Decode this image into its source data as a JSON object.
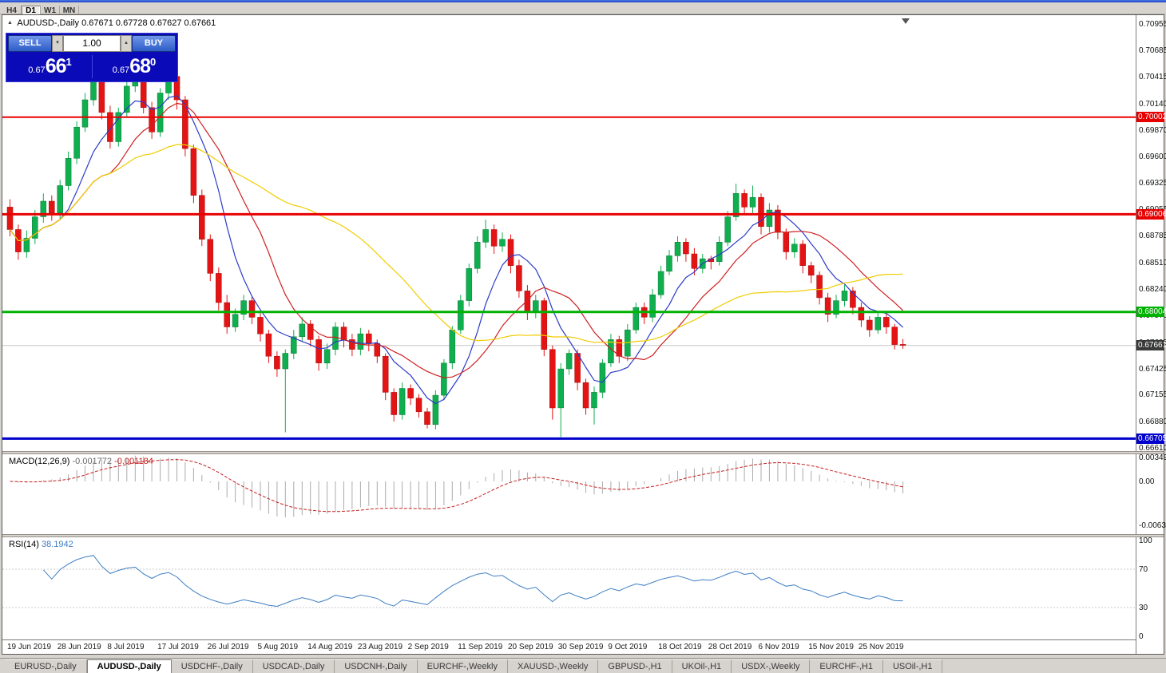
{
  "window": {
    "toolbar": {
      "timeframes": [
        "H4",
        "D1",
        "W1",
        "MN"
      ],
      "active": "D1"
    }
  },
  "header": {
    "symbol_title": "AUDUSD-,Daily",
    "ohlc": "0.67671 0.67728 0.67627 0.67661"
  },
  "trade_panel": {
    "sell_label": "SELL",
    "buy_label": "BUY",
    "volume": "1.00",
    "sell_price_prefix": "0.67",
    "sell_price_big": "66",
    "sell_price_sup": "1",
    "buy_price_prefix": "0.67",
    "buy_price_big": "68",
    "buy_price_sup": "0"
  },
  "tabs": {
    "items": [
      {
        "label": "EURUSD-,Daily",
        "active": false
      },
      {
        "label": "AUDUSD-,Daily",
        "active": true
      },
      {
        "label": "USDCHF-,Daily",
        "active": false
      },
      {
        "label": "USDCAD-,Daily",
        "active": false
      },
      {
        "label": "USDCNH-,Daily",
        "active": false
      },
      {
        "label": "EURCHF-,Weekly",
        "active": false
      },
      {
        "label": "XAUUSD-,Weekly",
        "active": false
      },
      {
        "label": "GBPUSD-,H1",
        "active": false
      },
      {
        "label": "UKOil-,H1",
        "active": false
      },
      {
        "label": "USDX-,Weekly",
        "active": false
      },
      {
        "label": "EURCHF-,H1",
        "active": false
      },
      {
        "label": "USOil-,H1",
        "active": false
      }
    ]
  },
  "chart_data": {
    "type": "candlestick",
    "symbol": "AUDUSD-",
    "timeframe": "Daily",
    "y_axis_range": {
      "top": 0.7095,
      "bottom": 0.6661
    },
    "bull_color": "#0fae4e",
    "bull_border": "#0a7a37",
    "bear_color": "#e41414",
    "bear_border": "#a30d0d",
    "y_ticks": [
      "0.70955",
      "0.70685",
      "0.70415",
      "0.70140",
      "0.69870",
      "0.69600",
      "0.69325",
      "0.69055",
      "0.68785",
      "0.68510",
      "0.68240",
      "0.67970",
      "0.67695",
      "0.67425",
      "0.67155",
      "0.66880",
      "0.66610"
    ],
    "badges": [
      {
        "t": "0.70002",
        "bg": "#e80000"
      },
      {
        "t": "0.69006",
        "bg": "#e80000"
      },
      {
        "t": "0.68004",
        "bg": "#00b200"
      },
      {
        "t": "0.67661",
        "bg": "#3a3a3a"
      },
      {
        "t": "0.66705",
        "bg": "#0000cd"
      }
    ],
    "hlines": [
      {
        "p": 0.70002,
        "c": "#e80000",
        "w": 2
      },
      {
        "p": 0.69006,
        "c": "#e80000",
        "w": 3
      },
      {
        "p": 0.68004,
        "c": "#00b200",
        "w": 3
      },
      {
        "p": 0.66705,
        "c": "#0000cd",
        "w": 3
      }
    ],
    "current_price_line": {
      "p": 0.67661,
      "c": "#c6c6c6",
      "w": 1
    },
    "moving_averages": [
      {
        "name": "fast-ma",
        "period": 7,
        "color": "#2b3bc8"
      },
      {
        "name": "medium-ma",
        "period": 13,
        "color": "#cf2020"
      },
      {
        "name": "slow-ma",
        "period": 34,
        "color": "#f0cc00"
      }
    ],
    "x_labels": [
      {
        "i": 0,
        "t": "19 Jun 2019"
      },
      {
        "i": 6,
        "t": "28 Jun 2019"
      },
      {
        "i": 12,
        "t": "8 Jul 2019"
      },
      {
        "i": 18,
        "t": "17 Jul 2019"
      },
      {
        "i": 24,
        "t": "26 Jul 2019"
      },
      {
        "i": 30,
        "t": "5 Aug 2019"
      },
      {
        "i": 36,
        "t": "14 Aug 2019"
      },
      {
        "i": 42,
        "t": "23 Aug 2019"
      },
      {
        "i": 48,
        "t": "2 Sep 2019"
      },
      {
        "i": 54,
        "t": "11 Sep 2019"
      },
      {
        "i": 60,
        "t": "20 Sep 2019"
      },
      {
        "i": 66,
        "t": "30 Sep 2019"
      },
      {
        "i": 72,
        "t": "9 Oct 2019"
      },
      {
        "i": 78,
        "t": "18 Oct 2019"
      },
      {
        "i": 84,
        "t": "28 Oct 2019"
      },
      {
        "i": 90,
        "t": "6 Nov 2019"
      },
      {
        "i": 96,
        "t": "15 Nov 2019"
      },
      {
        "i": 102,
        "t": "25 Nov 2019"
      }
    ],
    "candles": [
      [
        0.6908,
        0.6916,
        0.6878,
        0.6885
      ],
      [
        0.6885,
        0.689,
        0.6854,
        0.6862
      ],
      [
        0.6862,
        0.6884,
        0.6856,
        0.6876
      ],
      [
        0.6876,
        0.6905,
        0.687,
        0.6898
      ],
      [
        0.6898,
        0.6922,
        0.6892,
        0.6914
      ],
      [
        0.6914,
        0.692,
        0.6894,
        0.6902
      ],
      [
        0.6902,
        0.6936,
        0.6896,
        0.693
      ],
      [
        0.693,
        0.6965,
        0.6925,
        0.6958
      ],
      [
        0.6958,
        0.6996,
        0.6952,
        0.699
      ],
      [
        0.699,
        0.7025,
        0.6985,
        0.7018
      ],
      [
        0.7018,
        0.7046,
        0.7012,
        0.704
      ],
      [
        0.704,
        0.7044,
        0.6998,
        0.7005
      ],
      [
        0.7005,
        0.7012,
        0.6968,
        0.6975
      ],
      [
        0.6975,
        0.701,
        0.697,
        0.7005
      ],
      [
        0.7005,
        0.7038,
        0.7,
        0.7032
      ],
      [
        0.7032,
        0.7046,
        0.7026,
        0.7043
      ],
      [
        0.7043,
        0.7047,
        0.7004,
        0.701
      ],
      [
        0.701,
        0.7016,
        0.6978,
        0.6985
      ],
      [
        0.6985,
        0.703,
        0.698,
        0.7025
      ],
      [
        0.7025,
        0.7052,
        0.7018,
        0.7042
      ],
      [
        0.7042,
        0.7046,
        0.7008,
        0.7018
      ],
      [
        0.7018,
        0.7022,
        0.696,
        0.6968
      ],
      [
        0.6968,
        0.6972,
        0.6912,
        0.692
      ],
      [
        0.692,
        0.6926,
        0.6868,
        0.6875
      ],
      [
        0.6875,
        0.688,
        0.6832,
        0.684
      ],
      [
        0.684,
        0.6846,
        0.6802,
        0.681
      ],
      [
        0.681,
        0.6818,
        0.6778,
        0.6785
      ],
      [
        0.6785,
        0.6804,
        0.678,
        0.6798
      ],
      [
        0.6798,
        0.6818,
        0.6792,
        0.6812
      ],
      [
        0.6812,
        0.6816,
        0.6788,
        0.6795
      ],
      [
        0.6795,
        0.68,
        0.677,
        0.6778
      ],
      [
        0.6778,
        0.6782,
        0.6748,
        0.6755
      ],
      [
        0.6755,
        0.676,
        0.6734,
        0.6742
      ],
      [
        0.6742,
        0.6762,
        0.6677,
        0.6758
      ],
      [
        0.6758,
        0.6782,
        0.6752,
        0.6775
      ],
      [
        0.6775,
        0.6795,
        0.677,
        0.6788
      ],
      [
        0.6788,
        0.6792,
        0.6765,
        0.6772
      ],
      [
        0.6772,
        0.6776,
        0.674,
        0.6748
      ],
      [
        0.6748,
        0.6768,
        0.6742,
        0.6762
      ],
      [
        0.6762,
        0.679,
        0.6756,
        0.6785
      ],
      [
        0.6785,
        0.679,
        0.6764,
        0.6772
      ],
      [
        0.6772,
        0.6778,
        0.6755,
        0.6762
      ],
      [
        0.6762,
        0.6784,
        0.6756,
        0.6778
      ],
      [
        0.6778,
        0.6782,
        0.676,
        0.6768
      ],
      [
        0.6768,
        0.6772,
        0.6748,
        0.6755
      ],
      [
        0.6755,
        0.6758,
        0.671,
        0.6718
      ],
      [
        0.6718,
        0.6722,
        0.6688,
        0.6695
      ],
      [
        0.6695,
        0.6728,
        0.669,
        0.6722
      ],
      [
        0.6722,
        0.6726,
        0.6705,
        0.6712
      ],
      [
        0.6712,
        0.6716,
        0.6692,
        0.6698
      ],
      [
        0.6698,
        0.6702,
        0.6681,
        0.6685
      ],
      [
        0.6685,
        0.672,
        0.668,
        0.6715
      ],
      [
        0.6715,
        0.6752,
        0.671,
        0.6748
      ],
      [
        0.6748,
        0.6786,
        0.6742,
        0.6782
      ],
      [
        0.6782,
        0.6818,
        0.6778,
        0.6812
      ],
      [
        0.6812,
        0.685,
        0.6806,
        0.6845
      ],
      [
        0.6845,
        0.6878,
        0.684,
        0.6872
      ],
      [
        0.6872,
        0.6895,
        0.6866,
        0.6885
      ],
      [
        0.6885,
        0.689,
        0.686,
        0.6868
      ],
      [
        0.6868,
        0.6882,
        0.6862,
        0.6875
      ],
      [
        0.6875,
        0.688,
        0.684,
        0.6848
      ],
      [
        0.6848,
        0.6854,
        0.6815,
        0.6822
      ],
      [
        0.6822,
        0.6828,
        0.6792,
        0.68
      ],
      [
        0.68,
        0.6818,
        0.6794,
        0.6812
      ],
      [
        0.6812,
        0.6815,
        0.6755,
        0.6762
      ],
      [
        0.6762,
        0.6766,
        0.669,
        0.6702
      ],
      [
        0.6702,
        0.6748,
        0.6672,
        0.6742
      ],
      [
        0.6742,
        0.6762,
        0.6736,
        0.6758
      ],
      [
        0.6758,
        0.6762,
        0.672,
        0.6728
      ],
      [
        0.6728,
        0.6732,
        0.6695,
        0.6702
      ],
      [
        0.6702,
        0.6724,
        0.6685,
        0.6718
      ],
      [
        0.6718,
        0.6752,
        0.6712,
        0.6748
      ],
      [
        0.6748,
        0.6778,
        0.6744,
        0.6772
      ],
      [
        0.6772,
        0.6776,
        0.6748,
        0.6755
      ],
      [
        0.6755,
        0.6788,
        0.675,
        0.6782
      ],
      [
        0.6782,
        0.681,
        0.6778,
        0.6805
      ],
      [
        0.6805,
        0.681,
        0.6788,
        0.6795
      ],
      [
        0.6795,
        0.6824,
        0.679,
        0.6818
      ],
      [
        0.6818,
        0.6848,
        0.6814,
        0.6842
      ],
      [
        0.6842,
        0.6864,
        0.6838,
        0.6858
      ],
      [
        0.6858,
        0.6878,
        0.6852,
        0.6872
      ],
      [
        0.6872,
        0.6876,
        0.6852,
        0.686
      ],
      [
        0.686,
        0.6866,
        0.6838,
        0.6845
      ],
      [
        0.6845,
        0.686,
        0.684,
        0.6855
      ],
      [
        0.6855,
        0.6858,
        0.6844,
        0.6852
      ],
      [
        0.6852,
        0.6878,
        0.6848,
        0.6872
      ],
      [
        0.6872,
        0.6904,
        0.6868,
        0.6898
      ],
      [
        0.6898,
        0.6932,
        0.6894,
        0.6922
      ],
      [
        0.6922,
        0.6926,
        0.69,
        0.6908
      ],
      [
        0.6908,
        0.693,
        0.6902,
        0.6918
      ],
      [
        0.6918,
        0.6922,
        0.688,
        0.6888
      ],
      [
        0.6888,
        0.6912,
        0.6882,
        0.6905
      ],
      [
        0.6905,
        0.691,
        0.6875,
        0.6882
      ],
      [
        0.6882,
        0.6886,
        0.6854,
        0.6862
      ],
      [
        0.6862,
        0.6876,
        0.6856,
        0.687
      ],
      [
        0.687,
        0.6874,
        0.684,
        0.6848
      ],
      [
        0.6848,
        0.6852,
        0.683,
        0.6838
      ],
      [
        0.6838,
        0.6842,
        0.6808,
        0.6815
      ],
      [
        0.6815,
        0.682,
        0.679,
        0.6798
      ],
      [
        0.6798,
        0.6818,
        0.6794,
        0.6812
      ],
      [
        0.6812,
        0.6828,
        0.6806,
        0.6822
      ],
      [
        0.6822,
        0.6826,
        0.6798,
        0.6805
      ],
      [
        0.6805,
        0.681,
        0.6785,
        0.6792
      ],
      [
        0.6792,
        0.6796,
        0.6775,
        0.6782
      ],
      [
        0.6782,
        0.68,
        0.6778,
        0.6795
      ],
      [
        0.6795,
        0.6799,
        0.6778,
        0.6785
      ],
      [
        0.6785,
        0.6788,
        0.6762,
        0.6767
      ],
      [
        0.67671,
        0.67728,
        0.67627,
        0.67661
      ]
    ],
    "macd_panel": {
      "label": "MACD(12,26,9)",
      "value_main": "-0.001772",
      "value_signal": "-0.001184",
      "scale": [
        "0.00349",
        "0.00",
        "-0.00637"
      ],
      "bar_color": "#ababab",
      "signal_color": "#c42020"
    },
    "rsi_panel": {
      "label": "RSI(14)",
      "value": "38.1942",
      "period": 14,
      "scale": [
        "100",
        "70",
        "30",
        "0"
      ],
      "levels": [
        30,
        70
      ],
      "line_color": "#3d7ec4"
    }
  }
}
